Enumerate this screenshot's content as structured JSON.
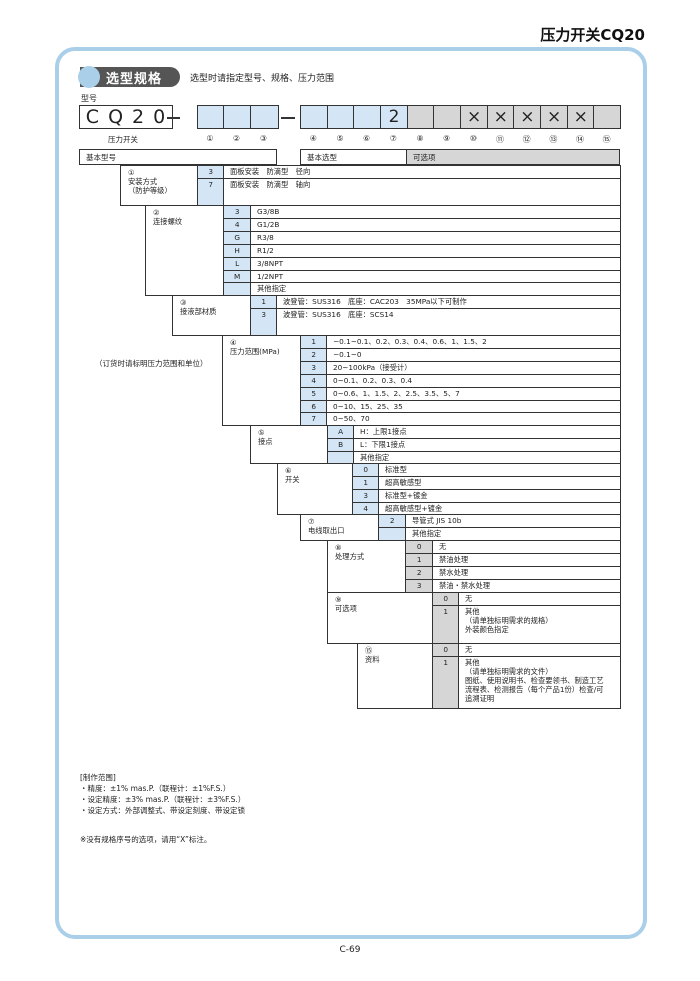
{
  "page_title": "压力开关CQ20",
  "section": {
    "heading": "选型规格",
    "subtitle": "选型时请指定型号、规格、压力范围"
  },
  "model": {
    "label": "型号",
    "prefix": "CQ20",
    "prefix_caption": "压力开关",
    "separator": "—",
    "slots": [
      "",
      "",
      "",
      "",
      "",
      "",
      "2",
      "",
      "",
      "×",
      "×",
      "×",
      "×",
      "×",
      ""
    ],
    "slot_numbers": [
      "①",
      "②",
      "③",
      "④",
      "⑤",
      "⑥",
      "⑦",
      "⑧",
      "⑨",
      "⑩",
      "⑪",
      "⑫",
      "⑬",
      "⑭",
      "⑮"
    ],
    "basic_model": "基本型号",
    "basic_selection": "基本选型",
    "options": "可选项"
  },
  "colors": {
    "blue_cell": "#d4e6f5",
    "gray_cell": "#d6d6d6",
    "frame": "#a9cfe9",
    "heading_pill": "#555555"
  },
  "sections": [
    {
      "num": "①",
      "label": "安装方式\n（防护等级）",
      "shade": "blue",
      "rows": [
        {
          "code": "3",
          "text": "面板安装　防滴型　径向"
        },
        {
          "code": "7",
          "text": "面板安装　防滴型　轴向"
        }
      ]
    },
    {
      "num": "②",
      "label": "连接螺纹",
      "shade": "blue",
      "rows": [
        {
          "code": "3",
          "text": "G3/8B"
        },
        {
          "code": "4",
          "text": "G1/2B"
        },
        {
          "code": "G",
          "text": "R3/8"
        },
        {
          "code": "H",
          "text": "R1/2"
        },
        {
          "code": "L",
          "text": "3/8NPT"
        },
        {
          "code": "M",
          "text": "1/2NPT"
        },
        {
          "code": "",
          "text": "其他指定"
        }
      ]
    },
    {
      "num": "③",
      "label": "接液部材质",
      "shade": "blue",
      "rows": [
        {
          "code": "1",
          "text": "波登管：SUS316　底座：CAC203　35MPa以下可制作"
        },
        {
          "code": "3",
          "text": "波登管：SUS316　底座：SCS14"
        }
      ]
    },
    {
      "num": "④",
      "label": "压力范围(MPa)",
      "shade": "blue",
      "rows": [
        {
          "code": "1",
          "text": "−0.1~0.1、0.2、0.3、0.4、0.6、1、1.5、2"
        },
        {
          "code": "2",
          "text": "−0.1~0"
        },
        {
          "code": "3",
          "text": "20~100kPa（接受计）"
        },
        {
          "code": "4",
          "text": "0~0.1、0.2、0.3、0.4"
        },
        {
          "code": "5",
          "text": "0~0.6、1、1.5、2、2.5、3.5、5、7"
        },
        {
          "code": "6",
          "text": "0~10、15、25、35"
        },
        {
          "code": "7",
          "text": "0~50、70"
        }
      ]
    },
    {
      "num": "⑤",
      "label": "接点",
      "shade": "blue",
      "rows": [
        {
          "code": "A",
          "text": "H：上限1接点"
        },
        {
          "code": "B",
          "text": "L：下限1接点"
        },
        {
          "code": "",
          "text": "其他指定"
        }
      ]
    },
    {
      "num": "⑥",
      "label": "开关",
      "shade": "blue",
      "rows": [
        {
          "code": "0",
          "text": "标准型"
        },
        {
          "code": "1",
          "text": "超高敏感型"
        },
        {
          "code": "3",
          "text": "标准型+镀金"
        },
        {
          "code": "4",
          "text": "超高敏感型+镀金"
        }
      ]
    },
    {
      "num": "⑦",
      "label": "电线取出口",
      "shade": "blue",
      "rows": [
        {
          "code": "2",
          "text": "导管式  JIS 10b"
        },
        {
          "code": "",
          "text": "其他指定"
        }
      ]
    },
    {
      "num": "⑧",
      "label": "处理方式",
      "shade": "gray",
      "rows": [
        {
          "code": "0",
          "text": "无"
        },
        {
          "code": "1",
          "text": "禁油处理"
        },
        {
          "code": "2",
          "text": "禁水处理"
        },
        {
          "code": "3",
          "text": "禁油・禁水处理"
        }
      ]
    },
    {
      "num": "⑨",
      "label": "可选项",
      "shade": "gray",
      "rows": [
        {
          "code": "0",
          "text": "无"
        },
        {
          "code": "1",
          "text": "其他\n（请单独标明需求的规格）\n外装颜色指定"
        }
      ]
    },
    {
      "num": "⑮",
      "label": "资料",
      "shade": "gray",
      "rows": [
        {
          "code": "0",
          "text": "无"
        },
        {
          "code": "1",
          "text": "其他\n（请单独标明需求的文件）\n图纸、使用说明书、检查要领书、制造工艺\n流程表、检测报告（每个产品1份）检查/可\n追溯证明"
        }
      ]
    }
  ],
  "order_note": "（订货时请标明压力范围和单位）",
  "notes": {
    "heading": "[制作范围]",
    "items": [
      "・精度：±1% mas.P.（联程计：±1%F.S.）",
      "・设定精度：±3% mas.P.（联程计：±3%F.S.）",
      "・设定方式：外部调整式、带设定刻度、带设定锁"
    ]
  },
  "x_note": "※没有规格序号的选项，请用“X”标注。",
  "page_number": "C-69"
}
